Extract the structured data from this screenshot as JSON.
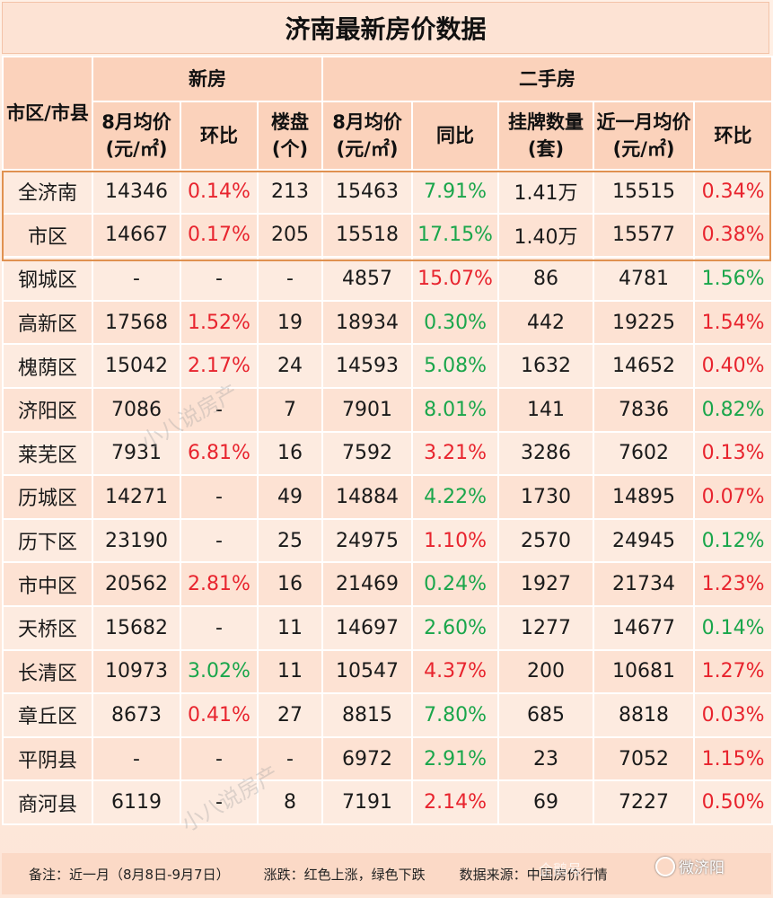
{
  "title": "济南最新房价数据",
  "headers": {
    "district": "市区/市县",
    "new_group": "新房",
    "second_group": "二手房",
    "new_avg": "8月均价(元/㎡)",
    "new_mom": "环比",
    "new_projects": "楼盘(个)",
    "sec_avg": "8月均价(元/㎡)",
    "sec_yoy": "同比",
    "sec_listings": "挂牌数量(套)",
    "sec_recent": "近一月均价(元/㎡)",
    "sec_mom": "环比"
  },
  "rows": [
    {
      "name": "全济南",
      "new_avg": "14346",
      "new_mom": "0.14%",
      "new_projects": "213",
      "sec_avg": "15463",
      "sec_yoy": "7.91%",
      "listings": "1.41万",
      "recent": "15515",
      "sec_mom": "0.34%"
    },
    {
      "name": "市区",
      "new_avg": "14667",
      "new_mom": "0.17%",
      "new_projects": "205",
      "sec_avg": "15518",
      "sec_yoy": "17.15%",
      "listings": "1.40万",
      "recent": "15577",
      "sec_mom": "0.38%"
    },
    {
      "name": "钢城区",
      "new_avg": "-",
      "new_mom": "-",
      "new_projects": "-",
      "sec_avg": "4857",
      "sec_yoy": "15.07%",
      "listings": "86",
      "recent": "4781",
      "sec_mom": "1.56%"
    },
    {
      "name": "高新区",
      "new_avg": "17568",
      "new_mom": "1.52%",
      "new_projects": "19",
      "sec_avg": "18934",
      "sec_yoy": "0.30%",
      "listings": "442",
      "recent": "19225",
      "sec_mom": "1.54%"
    },
    {
      "name": "槐荫区",
      "new_avg": "15042",
      "new_mom": "2.17%",
      "new_projects": "24",
      "sec_avg": "14593",
      "sec_yoy": "5.08%",
      "listings": "1632",
      "recent": "14652",
      "sec_mom": "0.40%"
    },
    {
      "name": "济阳区",
      "new_avg": "7086",
      "new_mom": "-",
      "new_projects": "7",
      "sec_avg": "7901",
      "sec_yoy": "8.01%",
      "listings": "141",
      "recent": "7836",
      "sec_mom": "0.82%"
    },
    {
      "name": "莱芜区",
      "new_avg": "7931",
      "new_mom": "6.81%",
      "new_projects": "16",
      "sec_avg": "7592",
      "sec_yoy": "3.21%",
      "listings": "3286",
      "recent": "7602",
      "sec_mom": "0.13%"
    },
    {
      "name": "历城区",
      "new_avg": "14271",
      "new_mom": "-",
      "new_projects": "49",
      "sec_avg": "14884",
      "sec_yoy": "4.22%",
      "listings": "1730",
      "recent": "14895",
      "sec_mom": "0.07%"
    },
    {
      "name": "历下区",
      "new_avg": "23190",
      "new_mom": "-",
      "new_projects": "25",
      "sec_avg": "24975",
      "sec_yoy": "1.10%",
      "listings": "2570",
      "recent": "24945",
      "sec_mom": "0.12%"
    },
    {
      "name": "市中区",
      "new_avg": "20562",
      "new_mom": "2.81%",
      "new_projects": "16",
      "sec_avg": "21469",
      "sec_yoy": "0.24%",
      "listings": "1927",
      "recent": "21734",
      "sec_mom": "1.23%"
    },
    {
      "name": "天桥区",
      "new_avg": "15682",
      "new_mom": "-",
      "new_projects": "11",
      "sec_avg": "14697",
      "sec_yoy": "2.60%",
      "listings": "1277",
      "recent": "14677",
      "sec_mom": "0.14%"
    },
    {
      "name": "长清区",
      "new_avg": "10973",
      "new_mom": "3.02%",
      "new_projects": "11",
      "sec_avg": "10547",
      "sec_yoy": "4.37%",
      "listings": "200",
      "recent": "10681",
      "sec_mom": "1.27%"
    },
    {
      "name": "章丘区",
      "new_avg": "8673",
      "new_mom": "0.41%",
      "new_projects": "27",
      "sec_avg": "8815",
      "sec_yoy": "7.80%",
      "listings": "685",
      "recent": "8818",
      "sec_mom": "0.03%"
    },
    {
      "name": "平阴县",
      "new_avg": "-",
      "new_mom": "-",
      "new_projects": "-",
      "sec_avg": "6972",
      "sec_yoy": "2.91%",
      "listings": "23",
      "recent": "7052",
      "sec_mom": "1.15%"
    },
    {
      "name": "商河县",
      "new_avg": "6119",
      "new_mom": "-",
      "new_projects": "8",
      "sec_avg": "7191",
      "sec_yoy": "2.14%",
      "listings": "69",
      "recent": "7227",
      "sec_mom": "0.50%"
    }
  ],
  "colors": {
    "new_mom": [
      "up",
      "up",
      "",
      "up",
      "up",
      "",
      "up",
      "",
      "",
      "up",
      "",
      "down",
      "up",
      "",
      ""
    ],
    "sec_yoy": [
      "down",
      "down",
      "up",
      "down",
      "down",
      "down",
      "up",
      "down",
      "up",
      "down",
      "down",
      "up",
      "down",
      "down",
      "up"
    ],
    "sec_mom": [
      "up",
      "up",
      "down",
      "up",
      "up",
      "down",
      "up",
      "up",
      "down",
      "up",
      "down",
      "up",
      "up",
      "up",
      "up"
    ]
  },
  "footer": {
    "note": "备注：近一月（8月8日-9月7日）",
    "legend": "涨跌：红色上涨，绿色下跌",
    "source": "数据来源：中国房价行情"
  },
  "watermarks": {
    "text": "小八说房产",
    "brand": "微济阳",
    "platform": "企鹅号"
  }
}
